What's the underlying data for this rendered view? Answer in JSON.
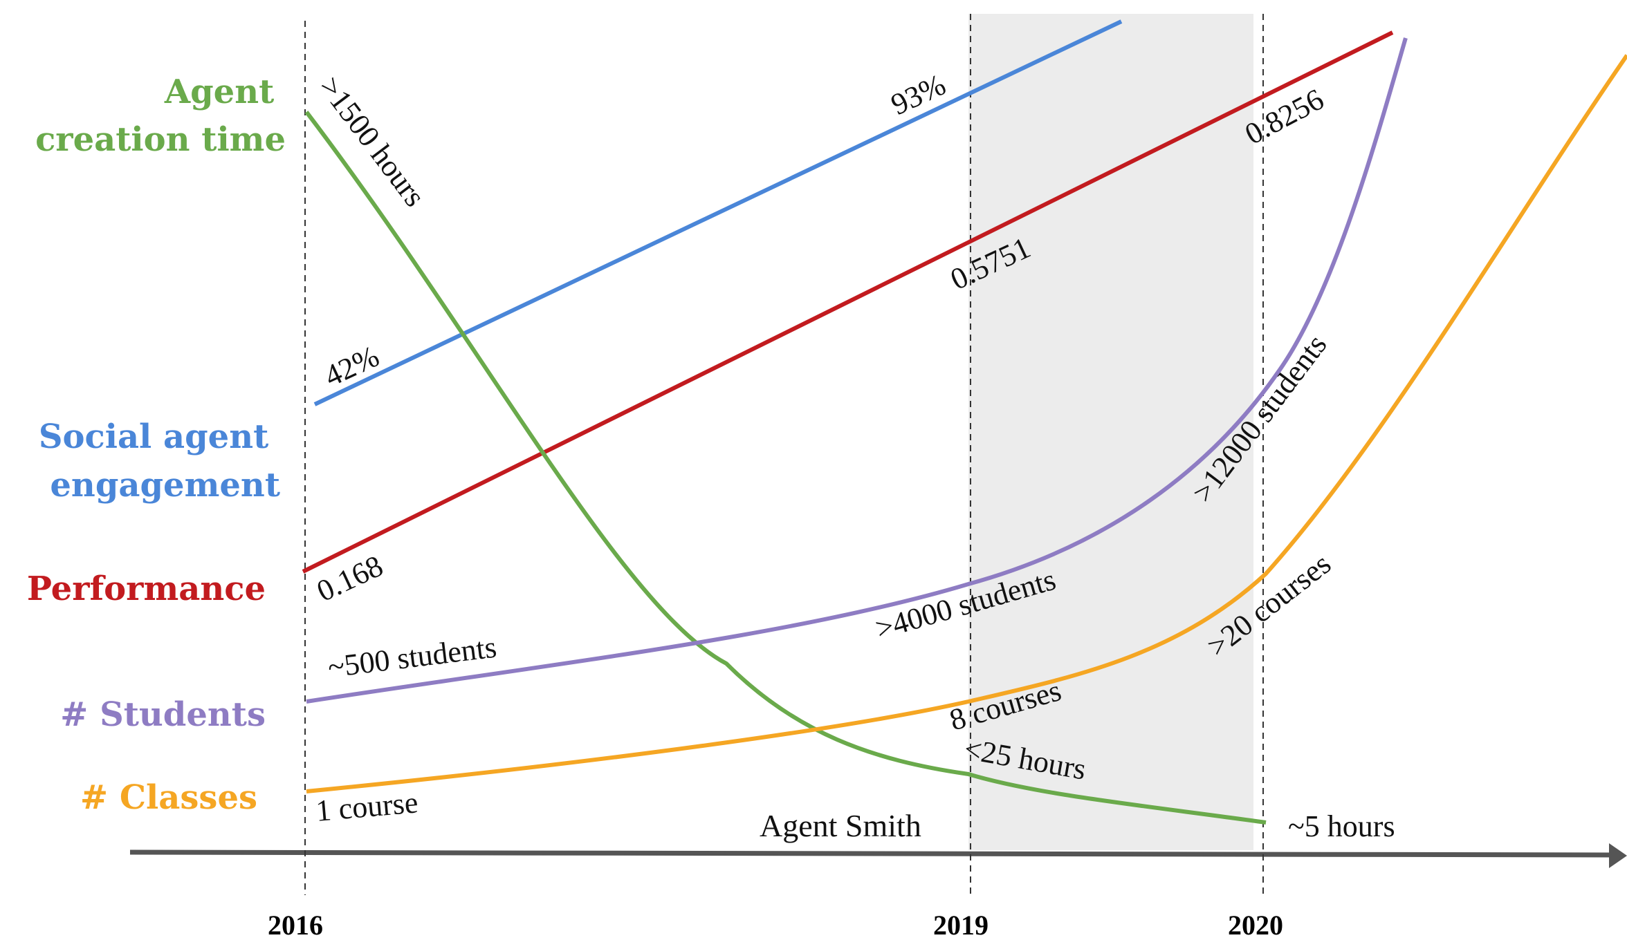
{
  "chart_data": {
    "type": "line",
    "title": "",
    "xlabel": "",
    "ylabel": "",
    "x_ticks": [
      "2016",
      "2019",
      "2020"
    ],
    "highlight_period": {
      "from": "2019",
      "to": "2020",
      "color": "#ececec"
    },
    "annotation": "Agent Smith",
    "series": [
      {
        "key": "creation",
        "name": "Agent creation time",
        "name_lines": [
          "Agent",
          "creation time"
        ],
        "color": "#6aaa4b",
        "labels": [
          ">1500 hours",
          "<25 hours",
          "~5 hours"
        ]
      },
      {
        "key": "social",
        "name": "Social agent engagement",
        "name_lines": [
          "Social agent",
          "engagement"
        ],
        "color": "#4a86d8",
        "labels": [
          "42%",
          "93%"
        ]
      },
      {
        "key": "performance",
        "name": "Performance",
        "name_lines": [
          "Performance"
        ],
        "color": "#c21b1f",
        "labels": [
          "0.168",
          "0.5751",
          "0.8256"
        ]
      },
      {
        "key": "students",
        "name": "# Students",
        "name_lines": [
          "# Students"
        ],
        "color": "#8e7cc3",
        "labels": [
          "~500 students",
          ">4000 students",
          ">12000 students"
        ]
      },
      {
        "key": "classes",
        "name": "# Classes",
        "name_lines": [
          "# Classes"
        ],
        "color": "#f5a623",
        "labels": [
          "1 course",
          "8 courses",
          ">20 courses"
        ]
      }
    ]
  }
}
